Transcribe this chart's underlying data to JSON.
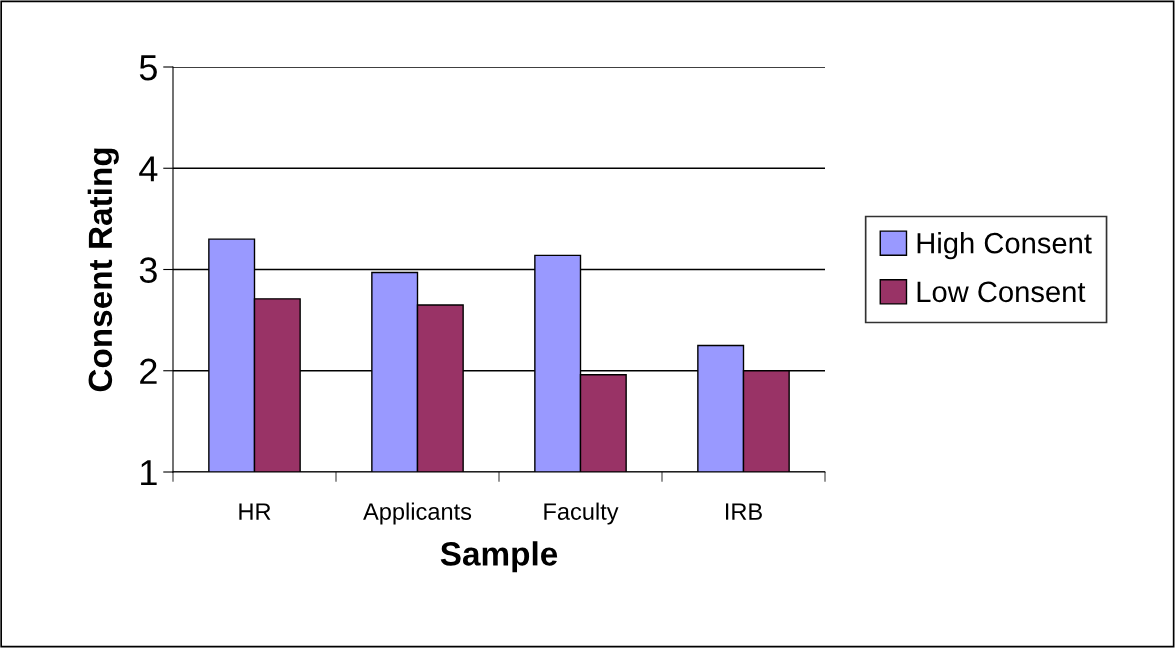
{
  "chart_data": {
    "type": "bar",
    "xlabel": "Sample",
    "ylabel": "Consent Rating",
    "categories": [
      "HR",
      "Applicants",
      "Faculty",
      "IRB"
    ],
    "series": [
      {
        "name": "High Consent",
        "color": "#9999ff",
        "values": [
          3.3,
          2.97,
          3.14,
          2.25
        ]
      },
      {
        "name": "Low Consent",
        "color": "#993366",
        "values": [
          2.71,
          2.65,
          1.96,
          2.0
        ]
      }
    ],
    "ylim": [
      1,
      5
    ],
    "yticks": [
      1,
      2,
      3,
      4,
      5
    ],
    "grid": "y",
    "legend": "right"
  }
}
